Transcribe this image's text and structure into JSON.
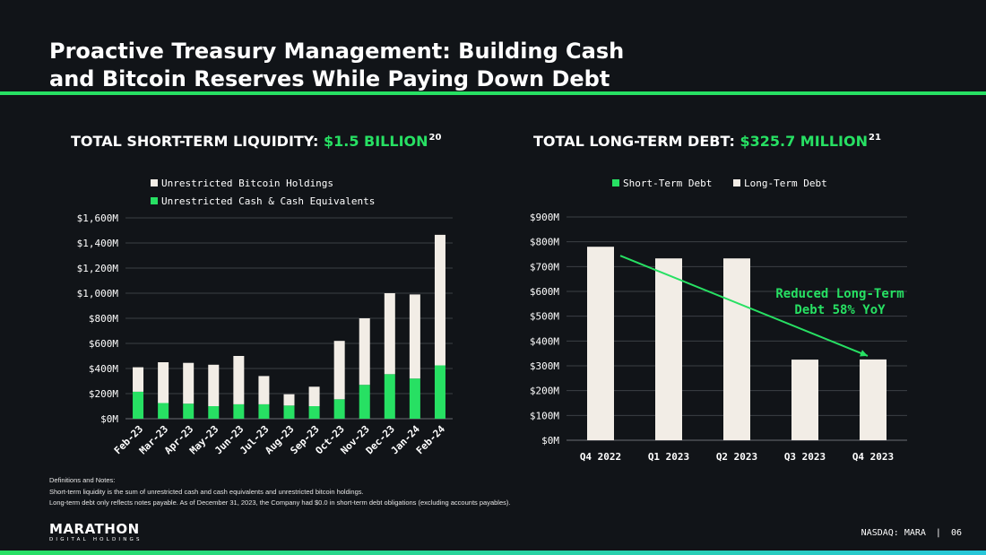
{
  "page": {
    "title_line1": "Proactive Treasury Management: Building Cash",
    "title_line2": "and Bitcoin Reserves While Paying Down Debt",
    "footer_ticker": "NASDAQ: MARA",
    "footer_separator": "|",
    "page_number": "06",
    "logo_word": "MARATHON",
    "logo_sub": "DIGITAL HOLDINGS",
    "notes_heading": "Definitions and Notes:",
    "note_1": "Short-term liquidity is the sum of unrestricted cash and cash equivalents and unrestricted bitcoin holdings.",
    "note_2": "Long-term debt only reflects notes payable. As of December 31, 2023, the Company had $0.0 in short-term debt obligations (excluding accounts payables).",
    "accent_color": "#27e063",
    "bar_light_color": "#f2ede6"
  },
  "chart_data": [
    {
      "type": "bar",
      "stacked": true,
      "title_prefix": "TOTAL SHORT-TERM LIQUIDITY:",
      "title_value": "$1.5 BILLION",
      "title_footnote": "20",
      "categories": [
        "Feb-23",
        "Mar-23",
        "Apr-23",
        "May-23",
        "Jun-23",
        "Jul-23",
        "Aug-23",
        "Sep-23",
        "Oct-23",
        "Nov-23",
        "Dec-23",
        "Jan-24",
        "Feb-24"
      ],
      "series": [
        {
          "name": "Unrestricted Cash & Cash Equivalents",
          "color": "#27e063",
          "values": [
            215,
            125,
            120,
            100,
            115,
            115,
            105,
            100,
            155,
            270,
            355,
            320,
            425
          ]
        },
        {
          "name": "Unrestricted Bitcoin Holdings",
          "color": "#f2ede6",
          "values": [
            195,
            325,
            325,
            330,
            385,
            225,
            90,
            155,
            465,
            530,
            645,
            670,
            1040
          ]
        }
      ],
      "legend_order": [
        "Unrestricted Bitcoin Holdings",
        "Unrestricted Cash & Cash Equivalents"
      ],
      "legend_placement": "top-left",
      "ylim": [
        0,
        1600
      ],
      "yticks": [
        0,
        200,
        400,
        600,
        800,
        1000,
        1200,
        1400,
        1600
      ],
      "ytick_labels": [
        "$0M",
        "$200M",
        "$400M",
        "$600M",
        "$800M",
        "$1,000M",
        "$1,200M",
        "$1,400M",
        "$1,600M"
      ],
      "xlabel": "",
      "ylabel": "",
      "grid": true
    },
    {
      "type": "bar",
      "stacked": true,
      "title_prefix": "TOTAL LONG-TERM DEBT:",
      "title_value": "$325.7 MILLION",
      "title_footnote": "21",
      "categories": [
        "Q4 2022",
        "Q1 2023",
        "Q2 2023",
        "Q3 2023",
        "Q4 2023"
      ],
      "series": [
        {
          "name": "Short-Term Debt",
          "color": "#27e063",
          "values": [
            0,
            0,
            0,
            0,
            0
          ]
        },
        {
          "name": "Long-Term Debt",
          "color": "#f2ede6",
          "values": [
            780,
            733,
            733,
            325,
            325.7
          ]
        }
      ],
      "legend_order": [
        "Short-Term Debt",
        "Long-Term Debt"
      ],
      "legend_placement": "top-left",
      "ylim": [
        0,
        900
      ],
      "yticks": [
        0,
        100,
        200,
        300,
        400,
        500,
        600,
        700,
        800,
        900
      ],
      "ytick_labels": [
        "$0M",
        "$100M",
        "$200M",
        "$300M",
        "$400M",
        "$500M",
        "$600M",
        "$700M",
        "$800M",
        "$900M"
      ],
      "xlabel": "",
      "ylabel": "",
      "grid": true,
      "annotation": {
        "line1": "Reduced Long-Term",
        "line2": "Debt 58% YoY",
        "color": "#27e063",
        "arrow_from_category": "Q4 2022",
        "arrow_to_category": "Q4 2023"
      }
    }
  ]
}
